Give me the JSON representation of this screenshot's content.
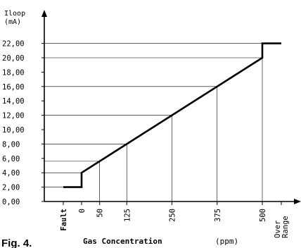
{
  "figure_label": "Fig. 4.",
  "chart_data": {
    "type": "line",
    "ylabel": [
      "Iloop",
      "(mA)"
    ],
    "xlabel": "Gas Concentration",
    "xunit": "(ppm)",
    "y_ticks": [
      "0,00",
      "2,00",
      "4,00",
      "6,00",
      "8,00",
      "10,00",
      "12,00",
      "14,00",
      "16,00",
      "18,00",
      "20,00",
      "22,00"
    ],
    "y_values": [
      0,
      2,
      4,
      6,
      8,
      10,
      12,
      14,
      16,
      18,
      20,
      22
    ],
    "x_ticks": [
      "Fault",
      "0",
      "50",
      "125",
      "250",
      "375",
      "500",
      "Over Range"
    ],
    "ylim": [
      0,
      22
    ],
    "series": [
      {
        "points": [
          {
            "x": "Fault",
            "y": 2
          },
          {
            "x": 0,
            "y": 2
          },
          {
            "x": 0,
            "y": 4
          },
          {
            "x": 500,
            "y": 20
          },
          {
            "x": 500,
            "y": 22
          },
          {
            "x": "Over Range",
            "y": 22
          }
        ]
      }
    ],
    "guides": [
      {
        "x": 50,
        "y": 5.6
      },
      {
        "x": 125,
        "y": 8
      },
      {
        "x": 250,
        "y": 12
      },
      {
        "x": 375,
        "y": 16
      },
      {
        "x": 500,
        "y": 20
      }
    ],
    "grid": false
  }
}
